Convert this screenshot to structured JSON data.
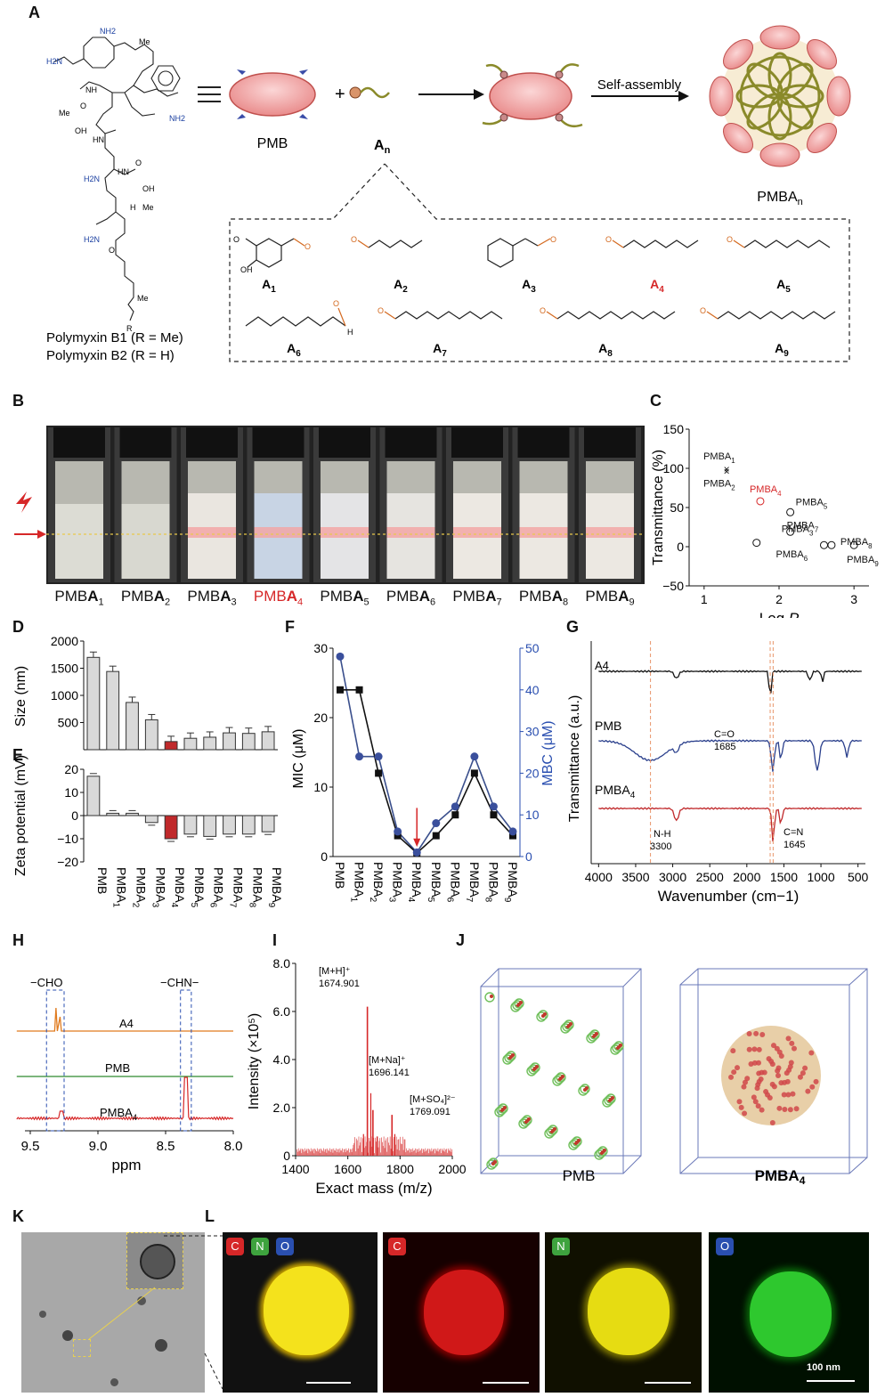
{
  "panel_labels": [
    "A",
    "B",
    "C",
    "D",
    "E",
    "F",
    "G",
    "H",
    "I",
    "J",
    "K",
    "L"
  ],
  "panelA": {
    "pmb_label": "PMB",
    "an_label": "A",
    "an_sub": "n",
    "self_assembly": "Self-assembly",
    "product_label": "PMBA",
    "product_sub": "n",
    "polymyxin_b1": "Polymyxin B1 (R = Me)",
    "polymyxin_b2": "Polymyxin B2 (R = H)",
    "aldehydes": [
      {
        "main": "A",
        "sub": "1"
      },
      {
        "main": "A",
        "sub": "2"
      },
      {
        "main": "A",
        "sub": "3"
      },
      {
        "main": "A",
        "sub": "4"
      },
      {
        "main": "A",
        "sub": "5"
      },
      {
        "main": "A",
        "sub": "6"
      },
      {
        "main": "A",
        "sub": "7"
      },
      {
        "main": "A",
        "sub": "8"
      },
      {
        "main": "A",
        "sub": "9"
      }
    ],
    "structure_labels": [
      "NH2",
      "Me",
      "NH",
      "H2N",
      "O",
      "Me",
      "OH",
      "HN",
      "NH2",
      "H2N",
      "O",
      "HN",
      "OH",
      "Me",
      "H",
      "O",
      "H2N",
      "Me",
      "R",
      "OH",
      "Me",
      "H"
    ]
  },
  "panelB": {
    "vials": [
      {
        "main": "PMBA",
        "sub": "1"
      },
      {
        "main": "PMBA",
        "sub": "2"
      },
      {
        "main": "PMBA",
        "sub": "3"
      },
      {
        "main": "PMBA",
        "sub": "4"
      },
      {
        "main": "PMBA",
        "sub": "5"
      },
      {
        "main": "PMBA",
        "sub": "6"
      },
      {
        "main": "PMBA",
        "sub": "7"
      },
      {
        "main": "PMBA",
        "sub": "8"
      },
      {
        "main": "PMBA",
        "sub": "9"
      }
    ]
  },
  "chart_data": [
    {
      "id": "C",
      "type": "scatter",
      "ylabel": "Transmittance (%)",
      "xlabel": "Log P",
      "xlim": [
        0.8,
        3.2
      ],
      "ylim": [
        -50,
        150
      ],
      "xticks": [
        "1",
        "2",
        "3"
      ],
      "yticks": [
        "150",
        "100",
        "50",
        "0",
        "−50"
      ],
      "points": [
        {
          "main": "PMBA",
          "sub": "1",
          "x": 1.3,
          "y": 100
        },
        {
          "main": "PMBA",
          "sub": "2",
          "x": 1.3,
          "y": 97
        },
        {
          "main": "PMBA",
          "sub": "4",
          "x": 1.75,
          "y": 58
        },
        {
          "main": "PMBA",
          "sub": "5",
          "x": 2.15,
          "y": 44
        },
        {
          "main": "PMBA",
          "sub": "7",
          "x": 2.15,
          "y": 19
        },
        {
          "main": "PMBA",
          "sub": "6",
          "x": 2.6,
          "y": 2
        },
        {
          "main": "PMBA",
          "sub": "8",
          "x": 2.7,
          "y": 2
        },
        {
          "main": "PMBA",
          "sub": "9",
          "x": 3.0,
          "y": 2
        },
        {
          "main": "PMBA",
          "sub": "3",
          "x": 1.7,
          "y": 5
        }
      ]
    },
    {
      "id": "D",
      "type": "bar",
      "ylabel": "Size (nm)",
      "ylim": [
        0,
        2000
      ],
      "yticks": [
        "2000",
        "1500",
        "1000",
        "500"
      ],
      "values": [
        1700,
        1440,
        870,
        550,
        150,
        210,
        230,
        310,
        300,
        330
      ]
    },
    {
      "id": "E",
      "type": "bar",
      "ylabel": "Zeta potential (mV)",
      "ylim": [
        -20,
        20
      ],
      "yticks": [
        "20",
        "10",
        "0",
        "−10",
        "−20"
      ],
      "values": [
        17,
        1,
        1,
        -3,
        -10,
        -8,
        -9,
        -8,
        -8,
        -7
      ],
      "categories": [
        {
          "main": "PMB",
          "sub": ""
        },
        {
          "main": "PMBA",
          "sub": "1"
        },
        {
          "main": "PMBA",
          "sub": "2"
        },
        {
          "main": "PMBA",
          "sub": "3"
        },
        {
          "main": "PMBA",
          "sub": "4"
        },
        {
          "main": "PMBA",
          "sub": "5"
        },
        {
          "main": "PMBA",
          "sub": "6"
        },
        {
          "main": "PMBA",
          "sub": "7"
        },
        {
          "main": "PMBA",
          "sub": "8"
        },
        {
          "main": "PMBA",
          "sub": "9"
        }
      ]
    },
    {
      "id": "F",
      "type": "line",
      "ylabel": "MIC (μM)",
      "y2label": "MBC (μM)",
      "ylim": [
        0,
        30
      ],
      "y2lim": [
        0,
        50
      ],
      "yticks": [
        "30",
        "20",
        "10",
        "0"
      ],
      "y2ticks": [
        "50",
        "40",
        "30",
        "20",
        "10",
        "0"
      ],
      "categories": [
        {
          "main": "PMB",
          "sub": ""
        },
        {
          "main": "PMBA",
          "sub": "1"
        },
        {
          "main": "PMBA",
          "sub": "2"
        },
        {
          "main": "PMBA",
          "sub": "3"
        },
        {
          "main": "PMBA",
          "sub": "4"
        },
        {
          "main": "PMBA",
          "sub": "5"
        },
        {
          "main": "PMBA",
          "sub": "6"
        },
        {
          "main": "PMBA",
          "sub": "7"
        },
        {
          "main": "PMBA",
          "sub": "8"
        },
        {
          "main": "PMBA",
          "sub": "9"
        }
      ],
      "series": [
        {
          "name": "MIC",
          "values": [
            24,
            24,
            12,
            3,
            0.5,
            3,
            6,
            12,
            6,
            3
          ]
        },
        {
          "name": "MBC",
          "values": [
            48,
            24,
            24,
            6,
            1,
            8,
            12,
            24,
            12,
            6
          ]
        }
      ]
    },
    {
      "id": "G",
      "type": "line",
      "ylabel": "Transmittance (a.u.)",
      "xlabel": "Wavenumber (cm−1)",
      "xticks": [
        "4000",
        "3500",
        "3000",
        "2500",
        "2000",
        "1500",
        "1000",
        "500"
      ],
      "series": [
        "A4",
        "PMB",
        "PMBA4"
      ],
      "annotations": [
        "C=O",
        "1685",
        "N-H",
        "3300",
        "C=N",
        "1645"
      ]
    },
    {
      "id": "H",
      "type": "line",
      "xlabel": "ppm",
      "xticks": [
        "9.5",
        "9.0",
        "8.5",
        "8.0"
      ],
      "series": [
        "A4",
        "PMB",
        "PMBA4"
      ],
      "labels": [
        "−CHO",
        "−CHN−"
      ]
    },
    {
      "id": "I",
      "type": "bar",
      "ylabel": "Intensity (×10⁵)",
      "xlabel": "Exact mass (m/z)",
      "xticks": [
        "1400",
        "1600",
        "1800",
        "2000"
      ],
      "yticks": [
        "8.0",
        "6.0",
        "4.0",
        "2.0",
        "0"
      ],
      "peaks": [
        {
          "x": 1674.901,
          "y": 6.2,
          "ion": "[M+H]⁺",
          "value": "1674.901"
        },
        {
          "x": 1696.141,
          "y": 1.9,
          "ion": "[M+Na]⁺",
          "value": "1696.141"
        },
        {
          "x": 1769.091,
          "y": 1.7,
          "ion": "[M+SO₄]²⁻",
          "value": "1769.091"
        }
      ]
    }
  ],
  "panelJ": {
    "left": "PMB",
    "right_main": "PMBA",
    "right_sub": "4"
  },
  "panelL": {
    "overlay": [
      "C",
      "N",
      "O"
    ],
    "maps": [
      "C",
      "N",
      "O"
    ],
    "scale": "100 nm"
  }
}
